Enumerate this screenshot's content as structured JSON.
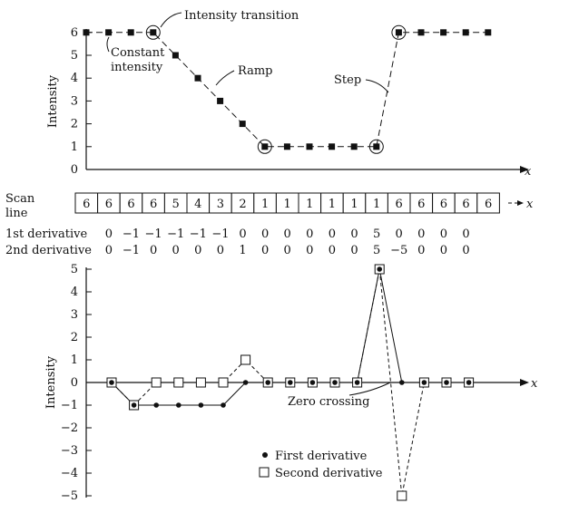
{
  "top": {
    "ylabel": "Intensity",
    "xlabel": "x",
    "yticks": [
      "0",
      "1",
      "2",
      "3",
      "4",
      "5",
      "6"
    ],
    "annotations": {
      "transition": "Intensity transition",
      "constant1": "Constant",
      "constant2": "intensity",
      "ramp": "Ramp",
      "step": "Step"
    }
  },
  "table": {
    "scan_label1": "Scan",
    "scan_label2": "line",
    "xlabel": "x",
    "first_label": "1st derivative",
    "second_label": "2nd derivative"
  },
  "bottom": {
    "ylabel": "Intensity",
    "xlabel": "x",
    "yticks": [
      "5",
      "4",
      "3",
      "2",
      "1",
      "0",
      "−1",
      "−2",
      "−3",
      "−4",
      "−5"
    ],
    "zero_crossing": "Zero crossing",
    "legend_first": "First derivative",
    "legend_second": "Second derivative"
  },
  "chart_data": {
    "type": "line",
    "scan_line": [
      6,
      6,
      6,
      6,
      5,
      4,
      3,
      2,
      1,
      1,
      1,
      1,
      1,
      1,
      6,
      6,
      6,
      6,
      6
    ],
    "first_derivative": [
      "",
      "0",
      "−1",
      "−1",
      "−1",
      "−1",
      "−1",
      "0",
      "0",
      "0",
      "0",
      "0",
      "0",
      "5",
      "0",
      "0",
      "0",
      "0",
      ""
    ],
    "second_derivative": [
      "",
      "0",
      "−1",
      "0",
      "0",
      "0",
      "0",
      "1",
      "0",
      "0",
      "0",
      "0",
      "0",
      "5",
      "−5",
      "0",
      "0",
      "0",
      ""
    ],
    "first_derivative_values": [
      0,
      -1,
      -1,
      -1,
      -1,
      -1,
      0,
      0,
      0,
      0,
      0,
      0,
      5,
      0,
      0,
      0,
      0
    ],
    "second_derivative_values": [
      0,
      -1,
      0,
      0,
      0,
      0,
      1,
      0,
      0,
      0,
      0,
      0,
      5,
      -5,
      0,
      0,
      0
    ],
    "top_ylim": [
      0,
      6
    ],
    "bottom_ylim": [
      -5,
      5
    ]
  },
  "colors": {
    "ink": "#111111",
    "background": "#ffffff"
  }
}
